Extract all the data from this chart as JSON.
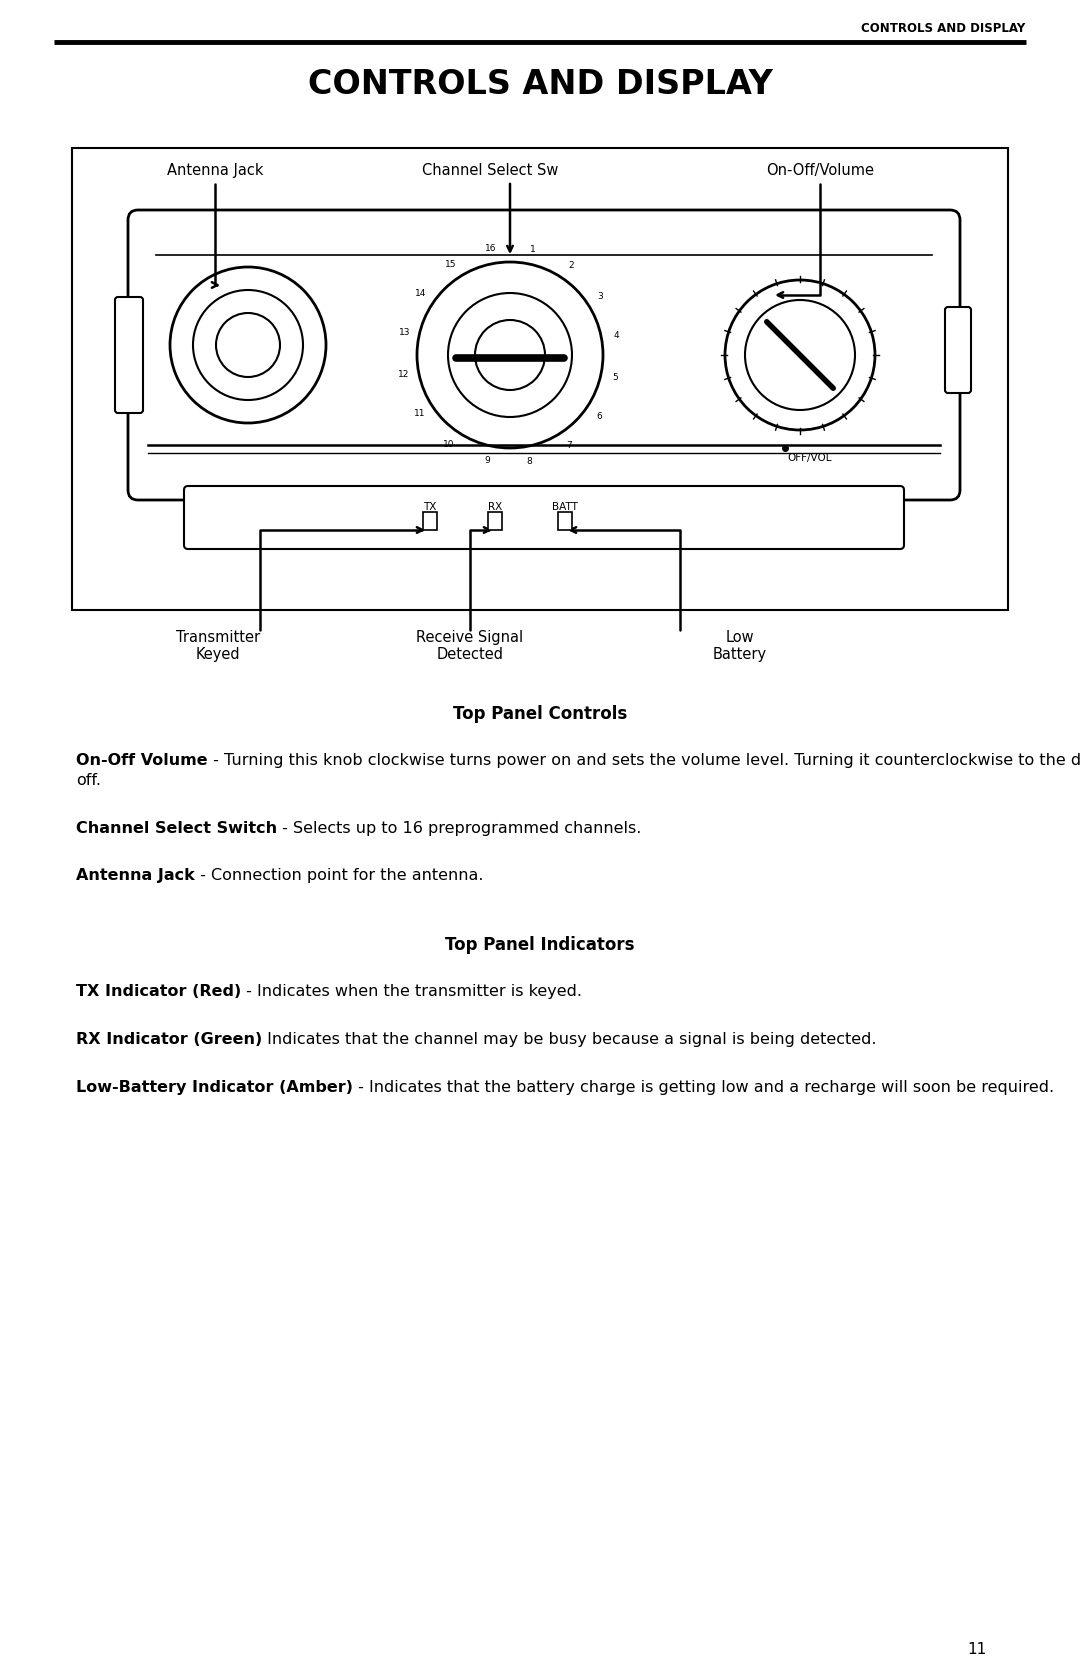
{
  "header_text": "CONTROLS AND DISPLAY",
  "title_text": "CONTROLS AND DISPLAY",
  "page_number": "11",
  "bg_color": "#ffffff",
  "caption1": "Top Panel Controls",
  "caption2": "Top Panel Indicators",
  "para1_bold": "On-Off Volume",
  "para1_normal": " - Turning this knob clockwise turns power on and sets\nthe volume level. Turning it counterclockwise to the detent turns power\noff.",
  "para2_bold": "Channel Select Switch",
  "para2_normal": " - Selects up to 16 preprogrammed channels.",
  "para3_bold": "Antenna Jack",
  "para3_normal": " - Connection point for the antenna.",
  "para4_bold": "TX Indicator (Red)",
  "para4_normal": " - Indicates when the transmitter is keyed.",
  "para5_bold": "RX Indicator (Green)",
  "para5_normal": " Indicates that the channel may be busy because a\nsignal is being detected.",
  "para6_bold": "Low-Battery Indicator (Amber)",
  "para6_normal": " - Indicates that the battery charge is\ngetting low and a recharge will soon be required."
}
